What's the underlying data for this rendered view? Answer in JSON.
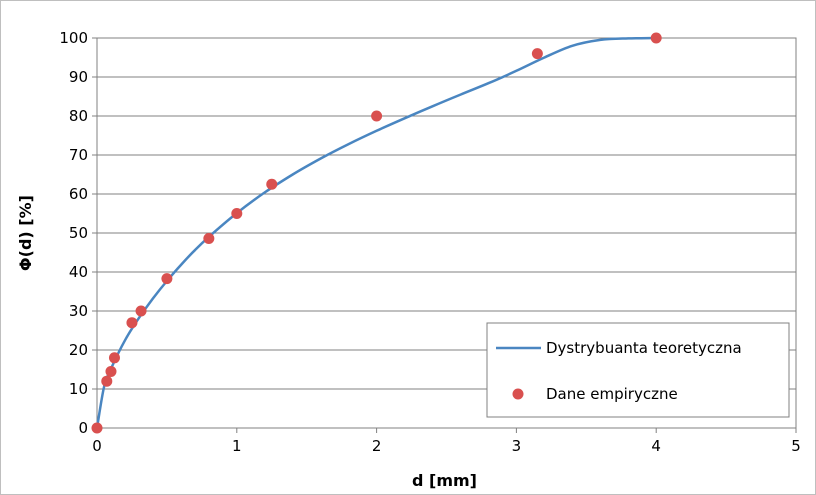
{
  "chart_data": {
    "type": "line",
    "xlabel": "d [mm]",
    "ylabel": "Φ(d) [%]",
    "xlim": [
      0,
      5
    ],
    "ylim": [
      0,
      100
    ],
    "xticks": [
      0,
      1,
      2,
      3,
      4,
      5
    ],
    "yticks": [
      0,
      10,
      20,
      30,
      40,
      50,
      60,
      70,
      80,
      90,
      100
    ],
    "grid": "horizontal",
    "legend": {
      "position": "bottom-right",
      "entries": [
        "Dystrybuanta teoretyczna",
        "Dane empiryczne"
      ]
    },
    "series": [
      {
        "name": "Dystrybuanta teoretyczna",
        "kind": "line",
        "color": "#4a86c1",
        "x": [
          0,
          0.05,
          0.1,
          0.2,
          0.3,
          0.4,
          0.5,
          0.6,
          0.7,
          0.8,
          1.0,
          1.2,
          1.4,
          1.6,
          1.8,
          2.0,
          2.2,
          2.4,
          2.6,
          2.8,
          3.0,
          3.2,
          3.4,
          3.6,
          3.8,
          4.0
        ],
        "y": [
          0,
          10.5,
          15.2,
          22.5,
          28.2,
          33.2,
          37.7,
          41.8,
          45.6,
          49.0,
          55.1,
          60.4,
          65.0,
          69.1,
          72.8,
          76.2,
          79.4,
          82.5,
          85.5,
          88.4,
          91.6,
          95.0,
          98.0,
          99.5,
          99.9,
          100
        ]
      },
      {
        "name": "Dane empiryczne",
        "kind": "scatter",
        "color": "#d9504f",
        "x": [
          0,
          0.07,
          0.1,
          0.125,
          0.25,
          0.315,
          0.5,
          0.8,
          1.0,
          1.25,
          2.0,
          3.15,
          4.0
        ],
        "y": [
          0,
          12,
          14.5,
          18,
          27,
          30,
          38.3,
          48.6,
          55,
          62.5,
          80,
          96,
          100
        ]
      }
    ]
  }
}
